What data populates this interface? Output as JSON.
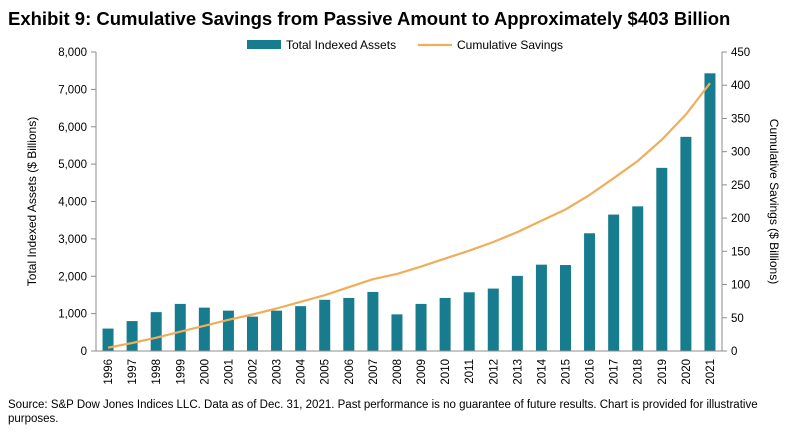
{
  "title": "Exhibit 9: Cumulative Savings from Passive Amount to Approximately $403 Billion",
  "source": "Source: S&P Dow Jones Indices LLC.  Data as of Dec. 31, 2021.  Past performance is no guarantee of future results.  Chart is provided for illustrative purposes.",
  "colors": {
    "bars": "#167c8e",
    "line": "#f0ad5a",
    "axis": "#8c8c8c"
  },
  "chart_data": {
    "type": "bar",
    "categories": [
      "1996",
      "1997",
      "1998",
      "1999",
      "2000",
      "2001",
      "2002",
      "2003",
      "2004",
      "2005",
      "2006",
      "2007",
      "2008",
      "2009",
      "2010",
      "2011",
      "2012",
      "2013",
      "2014",
      "2015",
      "2016",
      "2017",
      "2018",
      "2019",
      "2020",
      "2021"
    ],
    "series": [
      {
        "name": "Total Indexed Assets",
        "type": "bar",
        "axis": "left",
        "values": [
          600,
          800,
          1040,
          1260,
          1160,
          1080,
          920,
          1080,
          1200,
          1370,
          1420,
          1580,
          980,
          1260,
          1420,
          1570,
          1670,
          2010,
          2310,
          2300,
          3150,
          3650,
          3870,
          4900,
          5730,
          7430
        ]
      },
      {
        "name": "Cumulative Savings",
        "type": "line",
        "axis": "right",
        "values": [
          5,
          12,
          20,
          29,
          38,
          47,
          55,
          64,
          74,
          84,
          96,
          108,
          116,
          127,
          139,
          151,
          164,
          179,
          196,
          213,
          235,
          260,
          286,
          318,
          356,
          403
        ]
      }
    ],
    "ylabel_left": "Total Indexed Assets ($ Billions)",
    "ylabel_right": "Cumulative Savings ($ Billions)",
    "ylim_left": [
      0,
      8000
    ],
    "ylim_right": [
      0,
      450
    ],
    "yticks_left": [
      "0",
      "1,000",
      "2,000",
      "3,000",
      "4,000",
      "5,000",
      "6,000",
      "7,000",
      "8,000"
    ],
    "yticks_right": [
      "0",
      "50",
      "100",
      "150",
      "200",
      "250",
      "300",
      "350",
      "400",
      "450"
    ],
    "legend_position": "top",
    "grid": false
  }
}
